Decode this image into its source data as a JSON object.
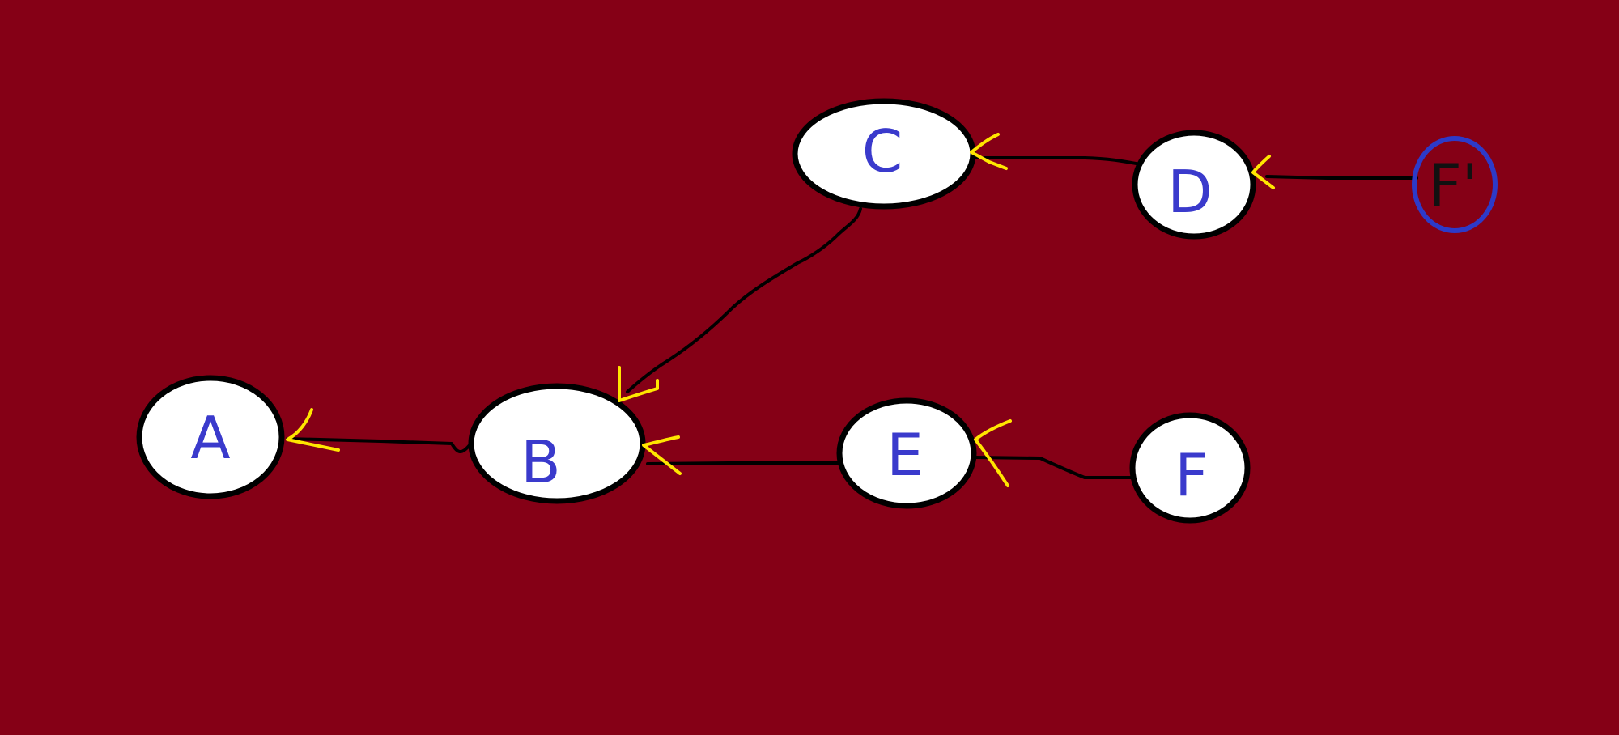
{
  "colors": {
    "background": "#850016",
    "node_fill": "#ffffff",
    "node_stroke": "#000000",
    "label": "#3a3acc",
    "highlight_stroke": "#2d3ac8",
    "highlight_label": "#111111",
    "edge": "#000000",
    "arrowhead": "#ffe600"
  },
  "nodes": [
    {
      "id": "A",
      "label": "A"
    },
    {
      "id": "B",
      "label": "B"
    },
    {
      "id": "C",
      "label": "C"
    },
    {
      "id": "D",
      "label": "D"
    },
    {
      "id": "E",
      "label": "E"
    },
    {
      "id": "F",
      "label": "F"
    },
    {
      "id": "Fp",
      "label": "F'"
    }
  ],
  "edges": [
    {
      "from": "B",
      "to": "A"
    },
    {
      "from": "C",
      "to": "B"
    },
    {
      "from": "E",
      "to": "B"
    },
    {
      "from": "D",
      "to": "C"
    },
    {
      "from": "F",
      "to": "E"
    },
    {
      "from": "Fp",
      "to": "D"
    }
  ]
}
